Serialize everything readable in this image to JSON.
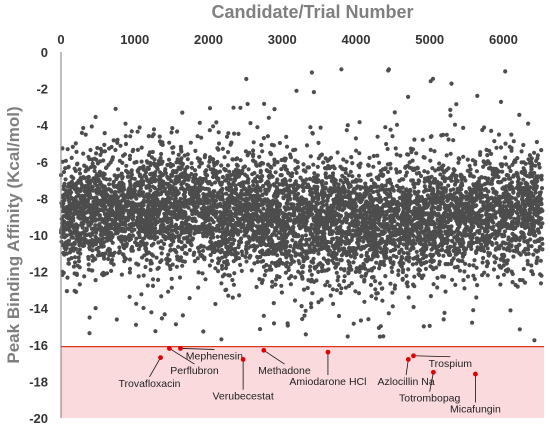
{
  "colors": {
    "point": "#4d4d4d",
    "highlight": "#e00000",
    "threshold_line": "#d9361a",
    "threshold_region": "#fadadd"
  },
  "chart_data": {
    "type": "scatter",
    "title": "",
    "xlabel": "Candidate/Trial Number",
    "ylabel": "Peak Binding Affinity (Kcal/mol)",
    "xlim": [
      0,
      6550
    ],
    "ylim": [
      -20,
      0
    ],
    "x_ticks": [
      "0",
      "1000",
      "2000",
      "3000",
      "4000",
      "5000",
      "6000"
    ],
    "y_ticks": [
      "0",
      "-2",
      "-4",
      "-6",
      "-8",
      "-10",
      "-12",
      "-14",
      "-16",
      "-18",
      "-20"
    ],
    "x_axis_position": "top",
    "grid": false,
    "threshold": -16.1,
    "point_count": 6500,
    "highlighted": [
      {
        "name": "Trovafloxacin",
        "x": 1350,
        "y": -16.7
      },
      {
        "name": "Perflubron",
        "x": 1470,
        "y": -16.2
      },
      {
        "name": "Mephenesin",
        "x": 1620,
        "y": -16.2
      },
      {
        "name": "Verubecestat",
        "x": 2470,
        "y": -16.8
      },
      {
        "name": "Methadone",
        "x": 2750,
        "y": -16.3
      },
      {
        "name": "Amiodarone HCl",
        "x": 3620,
        "y": -16.4
      },
      {
        "name": "Azlocillin Na",
        "x": 4710,
        "y": -16.8
      },
      {
        "name": "Trospium",
        "x": 4780,
        "y": -16.6
      },
      {
        "name": "Totrombopag",
        "x": 5050,
        "y": -17.5
      },
      {
        "name": "Micafungin",
        "x": 5620,
        "y": -17.6
      }
    ]
  }
}
